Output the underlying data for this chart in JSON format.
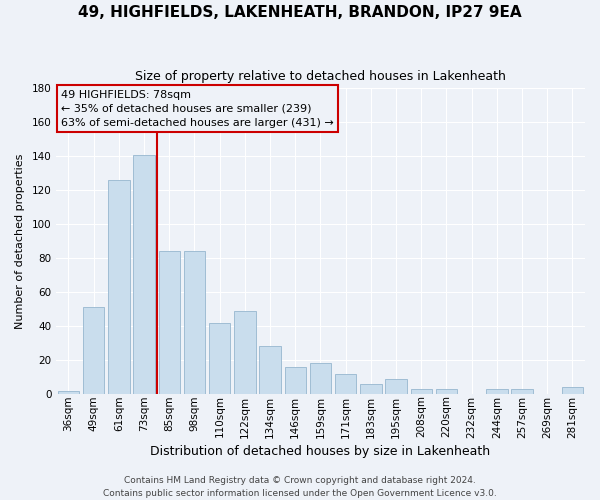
{
  "title": "49, HIGHFIELDS, LAKENHEATH, BRANDON, IP27 9EA",
  "subtitle": "Size of property relative to detached houses in Lakenheath",
  "xlabel": "Distribution of detached houses by size in Lakenheath",
  "ylabel": "Number of detached properties",
  "bar_labels": [
    "36sqm",
    "49sqm",
    "61sqm",
    "73sqm",
    "85sqm",
    "98sqm",
    "110sqm",
    "122sqm",
    "134sqm",
    "146sqm",
    "159sqm",
    "171sqm",
    "183sqm",
    "195sqm",
    "208sqm",
    "220sqm",
    "232sqm",
    "244sqm",
    "257sqm",
    "269sqm",
    "281sqm"
  ],
  "bar_values": [
    2,
    51,
    126,
    141,
    84,
    84,
    42,
    49,
    28,
    16,
    18,
    12,
    6,
    9,
    3,
    3,
    0,
    3,
    3,
    0,
    4
  ],
  "bar_color": "#c9dded",
  "bar_edge_color": "#a0bdd4",
  "ylim": [
    0,
    180
  ],
  "yticks": [
    0,
    20,
    40,
    60,
    80,
    100,
    120,
    140,
    160,
    180
  ],
  "vline_color": "#cc0000",
  "vline_x": 3.5,
  "annotation_title": "49 HIGHFIELDS: 78sqm",
  "annotation_line1": "← 35% of detached houses are smaller (239)",
  "annotation_line2": "63% of semi-detached houses are larger (431) →",
  "annotation_box_color": "#cc0000",
  "footer_line1": "Contains HM Land Registry data © Crown copyright and database right 2024.",
  "footer_line2": "Contains public sector information licensed under the Open Government Licence v3.0.",
  "background_color": "#eef2f8",
  "grid_color": "#ffffff",
  "title_fontsize": 11,
  "subtitle_fontsize": 9,
  "ylabel_fontsize": 8,
  "xlabel_fontsize": 9,
  "tick_fontsize": 7.5,
  "footer_fontsize": 6.5
}
